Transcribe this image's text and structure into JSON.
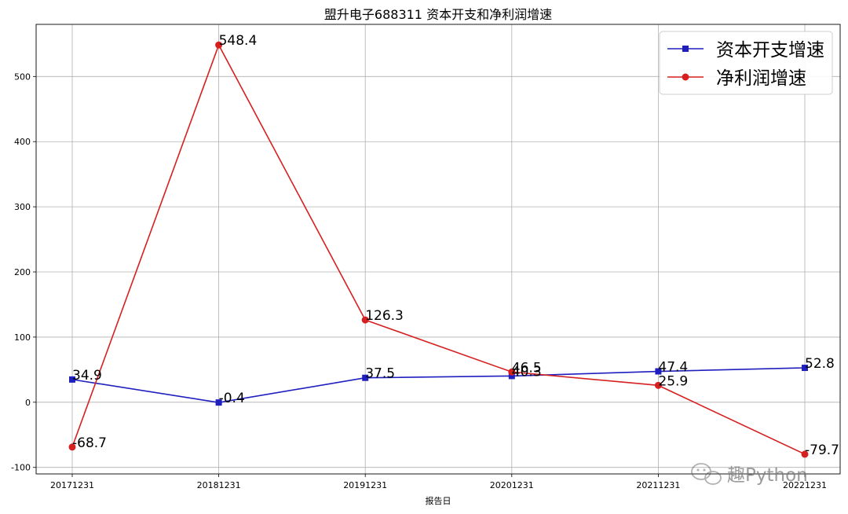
{
  "chart_data": {
    "type": "line",
    "title": "盟升电子688311 资本开支和净利润增速",
    "xlabel": "报告日",
    "ylabel": "",
    "categories": [
      "20171231",
      "20181231",
      "20191231",
      "20201231",
      "20211231",
      "20221231"
    ],
    "ylim": [
      -110,
      580
    ],
    "yticks": [
      -100,
      0,
      100,
      200,
      300,
      400,
      500
    ],
    "grid": true,
    "legend_position": "top-right",
    "series": [
      {
        "name": "资本开支增速",
        "values": [
          34.9,
          -0.4,
          37.5,
          40.3,
          47.4,
          52.8
        ],
        "labels": [
          "34.9",
          "-0.4",
          "37.5",
          "40.3",
          "47.4",
          "52.8"
        ],
        "color": "#1f1fbf",
        "marker": "square"
      },
      {
        "name": "净利润增速",
        "values": [
          -68.7,
          548.4,
          126.3,
          46.5,
          25.9,
          -79.7
        ],
        "labels": [
          "-68.7",
          "548.4",
          "126.3",
          "46.5",
          "25.9",
          "-79.7"
        ],
        "color": "#d62020",
        "marker": "circle"
      }
    ]
  },
  "watermark": {
    "text": "趣Python",
    "icon": "wechat-icon"
  }
}
